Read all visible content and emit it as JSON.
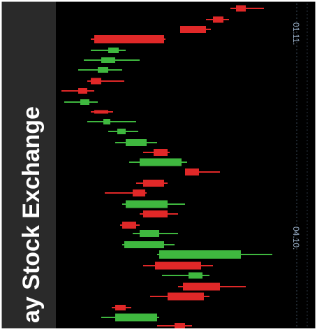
{
  "banner": {
    "title": "ay Stock Exchange"
  },
  "axis": {
    "labels": [
      "01.11.",
      "04.10."
    ]
  }
}
